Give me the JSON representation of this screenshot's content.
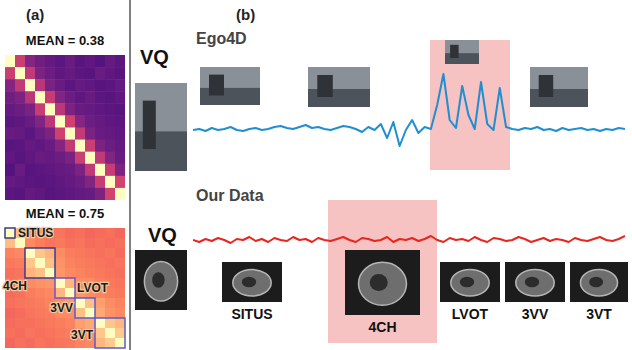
{
  "panels": [
    "(a)",
    "(b)"
  ],
  "chart_data": [
    {
      "type": "heatmap",
      "title": "MEAN = 0.38",
      "tick_labels": false,
      "cells": [
        [
          1.0,
          0.55,
          0.38,
          0.33,
          0.3,
          0.28,
          0.31,
          0.27,
          0.29,
          0.26,
          0.3,
          0.28
        ],
        [
          0.55,
          1.0,
          0.52,
          0.36,
          0.32,
          0.29,
          0.3,
          0.28,
          0.27,
          0.31,
          0.29,
          0.27
        ],
        [
          0.38,
          0.52,
          1.0,
          0.5,
          0.35,
          0.31,
          0.28,
          0.3,
          0.29,
          0.27,
          0.28,
          0.3
        ],
        [
          0.33,
          0.36,
          0.5,
          1.0,
          0.54,
          0.37,
          0.32,
          0.29,
          0.31,
          0.28,
          0.27,
          0.29
        ],
        [
          0.3,
          0.32,
          0.35,
          0.54,
          1.0,
          0.51,
          0.36,
          0.31,
          0.3,
          0.29,
          0.28,
          0.27
        ],
        [
          0.28,
          0.29,
          0.31,
          0.37,
          0.51,
          1.0,
          0.56,
          0.38,
          0.32,
          0.3,
          0.29,
          0.28
        ],
        [
          0.31,
          0.3,
          0.28,
          0.32,
          0.36,
          0.56,
          1.0,
          0.53,
          0.35,
          0.31,
          0.3,
          0.29
        ],
        [
          0.27,
          0.28,
          0.3,
          0.29,
          0.31,
          0.38,
          0.53,
          1.0,
          0.55,
          0.36,
          0.32,
          0.3
        ],
        [
          0.29,
          0.27,
          0.29,
          0.31,
          0.3,
          0.32,
          0.35,
          0.55,
          1.0,
          0.52,
          0.37,
          0.31
        ],
        [
          0.26,
          0.31,
          0.27,
          0.28,
          0.29,
          0.3,
          0.31,
          0.36,
          0.52,
          1.0,
          0.54,
          0.36
        ],
        [
          0.3,
          0.29,
          0.28,
          0.27,
          0.28,
          0.29,
          0.3,
          0.32,
          0.37,
          0.54,
          1.0,
          0.57
        ],
        [
          0.28,
          0.27,
          0.3,
          0.29,
          0.27,
          0.28,
          0.29,
          0.3,
          0.31,
          0.36,
          0.57,
          1.0
        ]
      ]
    },
    {
      "type": "heatmap",
      "title": "MEAN = 0.75",
      "tick_labels": false,
      "annotations": [
        "SITUS",
        "4CH",
        "LVOT",
        "3VV",
        "3VT"
      ],
      "cells": [
        [
          1.0,
          0.86,
          0.74,
          0.72,
          0.7,
          0.71,
          0.69,
          0.7,
          0.68,
          0.69,
          0.7,
          0.68
        ],
        [
          0.86,
          1.0,
          0.75,
          0.73,
          0.71,
          0.72,
          0.7,
          0.71,
          0.69,
          0.7,
          0.69,
          0.7
        ],
        [
          0.74,
          0.75,
          1.0,
          0.88,
          0.84,
          0.76,
          0.73,
          0.72,
          0.71,
          0.7,
          0.71,
          0.69
        ],
        [
          0.72,
          0.73,
          0.88,
          1.0,
          0.87,
          0.77,
          0.74,
          0.73,
          0.72,
          0.71,
          0.7,
          0.71
        ],
        [
          0.7,
          0.71,
          0.84,
          0.87,
          1.0,
          0.78,
          0.75,
          0.74,
          0.73,
          0.72,
          0.71,
          0.7
        ],
        [
          0.71,
          0.72,
          0.76,
          0.77,
          0.78,
          1.0,
          0.85,
          0.76,
          0.75,
          0.73,
          0.72,
          0.71
        ],
        [
          0.69,
          0.7,
          0.73,
          0.74,
          0.75,
          0.85,
          1.0,
          0.78,
          0.76,
          0.74,
          0.73,
          0.72
        ],
        [
          0.7,
          0.71,
          0.72,
          0.73,
          0.74,
          0.76,
          0.78,
          1.0,
          0.87,
          0.8,
          0.76,
          0.74
        ],
        [
          0.68,
          0.69,
          0.71,
          0.72,
          0.73,
          0.75,
          0.76,
          0.87,
          1.0,
          0.82,
          0.77,
          0.75
        ],
        [
          0.69,
          0.7,
          0.7,
          0.71,
          0.72,
          0.73,
          0.74,
          0.8,
          0.82,
          1.0,
          0.88,
          0.85
        ],
        [
          0.7,
          0.69,
          0.71,
          0.7,
          0.71,
          0.72,
          0.73,
          0.76,
          0.77,
          0.88,
          1.0,
          0.89
        ],
        [
          0.68,
          0.7,
          0.69,
          0.71,
          0.7,
          0.71,
          0.72,
          0.74,
          0.75,
          0.85,
          0.89,
          1.0
        ]
      ]
    },
    {
      "type": "line",
      "title": "Ego4D",
      "annotations": [
        "VQ"
      ],
      "color": "#1f8fd0",
      "tick_labels": false,
      "ylim": [
        0,
        1
      ],
      "values": [
        0.3,
        0.31,
        0.29,
        0.32,
        0.3,
        0.31,
        0.33,
        0.3,
        0.29,
        0.31,
        0.32,
        0.3,
        0.31,
        0.33,
        0.34,
        0.32,
        0.31,
        0.33,
        0.35,
        0.32,
        0.33,
        0.31,
        0.3,
        0.32,
        0.34,
        0.33,
        0.31,
        0.28,
        0.33,
        0.3,
        0.36,
        0.22,
        0.38,
        0.14,
        0.3,
        0.4,
        0.27,
        0.33,
        0.31,
        0.55,
        0.86,
        0.4,
        0.32,
        0.74,
        0.45,
        0.31,
        0.78,
        0.36,
        0.3,
        0.72,
        0.33,
        0.31,
        0.3,
        0.32,
        0.31,
        0.33,
        0.3,
        0.31,
        0.29,
        0.32,
        0.3,
        0.31,
        0.32,
        0.3,
        0.31,
        0.29,
        0.31,
        0.3,
        0.32,
        0.31
      ]
    },
    {
      "type": "line",
      "title": "Our Data",
      "annotations": [
        "VQ",
        "SITUS",
        "4CH",
        "LVOT",
        "3VV",
        "3VT"
      ],
      "color": "#e8251f",
      "tick_labels": false,
      "ylim": [
        0,
        1
      ],
      "values": [
        0.5,
        0.48,
        0.51,
        0.49,
        0.52,
        0.5,
        0.47,
        0.51,
        0.5,
        0.53,
        0.49,
        0.51,
        0.48,
        0.52,
        0.5,
        0.49,
        0.53,
        0.5,
        0.51,
        0.48,
        0.52,
        0.5,
        0.49,
        0.51,
        0.53,
        0.5,
        0.48,
        0.52,
        0.51,
        0.49,
        0.5,
        0.53,
        0.48,
        0.51,
        0.5,
        0.52,
        0.49,
        0.51,
        0.54,
        0.5,
        0.48,
        0.52,
        0.5,
        0.51,
        0.49,
        0.53,
        0.5,
        0.48,
        0.52,
        0.51,
        0.49,
        0.5,
        0.53,
        0.51,
        0.48,
        0.5,
        0.52,
        0.49,
        0.51,
        0.5,
        0.48,
        0.52,
        0.5,
        0.49,
        0.51,
        0.53,
        0.5,
        0.49,
        0.51,
        0.54
      ]
    }
  ]
}
